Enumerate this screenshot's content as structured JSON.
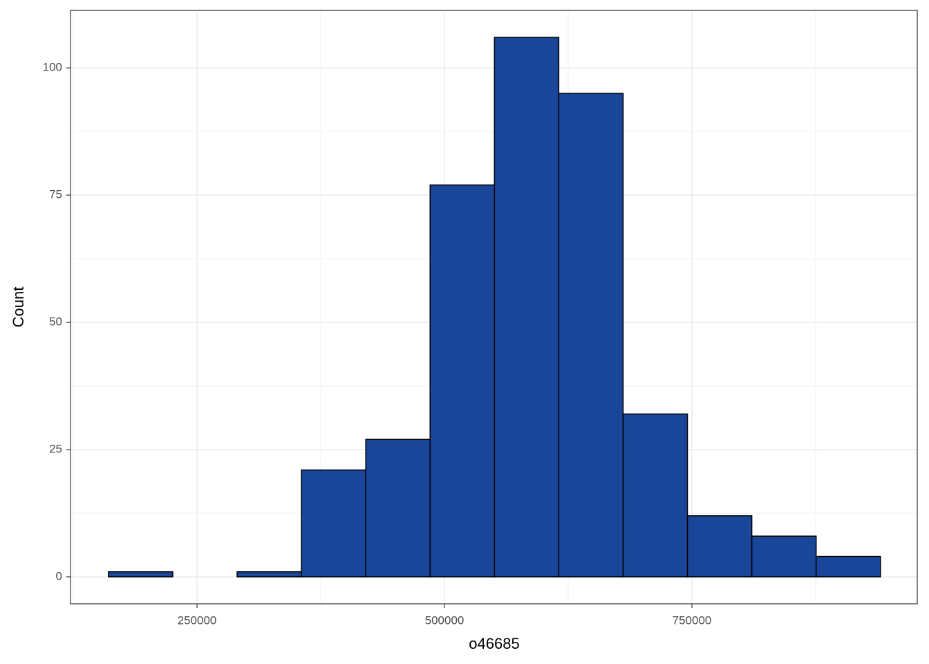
{
  "chart_data": {
    "type": "histogram",
    "x_label": "o46685",
    "y_label": "Count",
    "bins": [
      160500,
      225500,
      290500,
      355500,
      420500,
      485500,
      550500,
      615500,
      680500,
      745500,
      810500,
      875500,
      940500
    ],
    "values": [
      1,
      0,
      1,
      21,
      27,
      77,
      106,
      95,
      32,
      12,
      8,
      4
    ],
    "color": "#1a4699",
    "edge_color": "#000000",
    "xlim": [
      122200,
      977650
    ],
    "ylim": [
      -5.3,
      111.3
    ],
    "xticks": [
      250000,
      500000,
      750000
    ],
    "yticks": [
      0,
      25,
      50,
      75,
      100
    ],
    "minor_xticks": [
      125000,
      375000,
      625000,
      875000
    ],
    "minor_yticks": [
      12.5,
      37.5,
      62.5,
      87.5
    ],
    "grid": true
  }
}
